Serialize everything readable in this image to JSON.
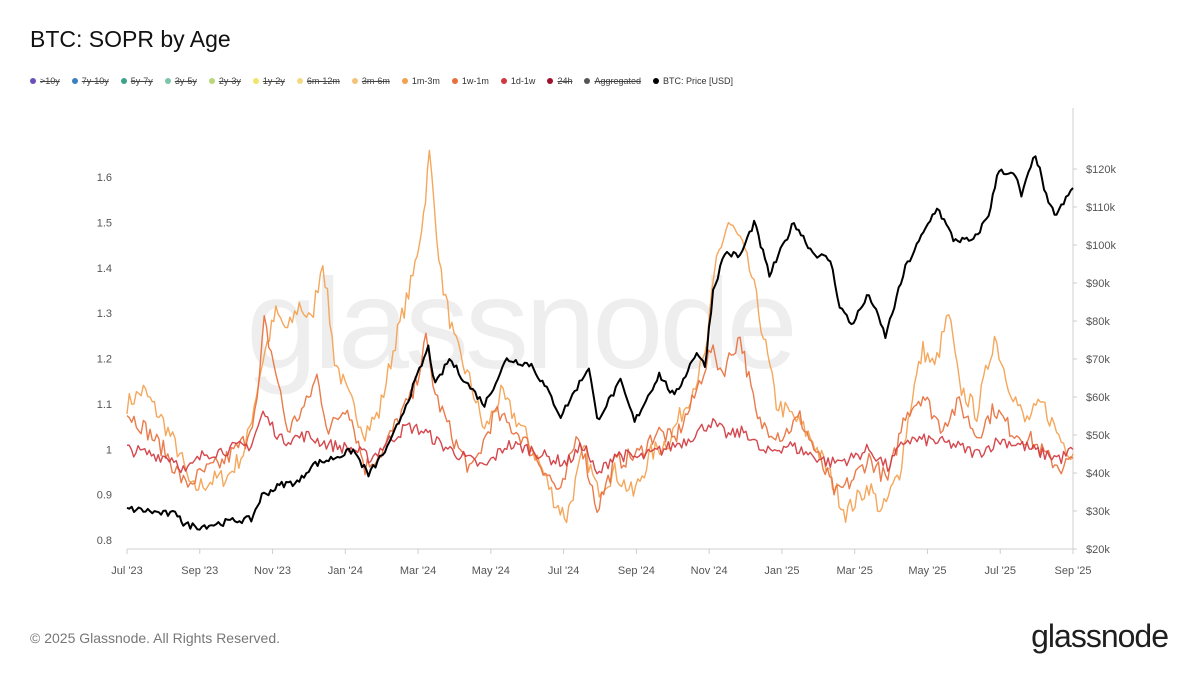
{
  "header": {
    "title": "BTC: SOPR by Age"
  },
  "legend": [
    {
      "label": ">10y",
      "color": "#6b4fbb",
      "off": true
    },
    {
      "label": "7y-10y",
      "color": "#3d7fc4",
      "off": true
    },
    {
      "label": "5y-7y",
      "color": "#3aa38a",
      "off": true
    },
    {
      "label": "3y-5y",
      "color": "#7cc5a8",
      "off": true
    },
    {
      "label": "2y-3y",
      "color": "#b9d77a",
      "off": true
    },
    {
      "label": "1y-2y",
      "color": "#f0e66a",
      "off": true
    },
    {
      "label": "6m-12m",
      "color": "#f6d884",
      "off": true
    },
    {
      "label": "3m-6m",
      "color": "#f5c27a",
      "off": true
    },
    {
      "label": "1m-3m",
      "color": "#f4a04e",
      "off": false
    },
    {
      "label": "1w-1m",
      "color": "#e8703c",
      "off": false
    },
    {
      "label": "1d-1w",
      "color": "#d0383f",
      "off": false
    },
    {
      "label": "24h",
      "color": "#a0102a",
      "off": true
    },
    {
      "label": "Aggregated",
      "color": "#555555",
      "off": true
    },
    {
      "label": "BTC: Price [USD]",
      "color": "#000000",
      "off": false
    }
  ],
  "watermark": "glassnode",
  "footer": {
    "copyright": "© 2025 Glassnode. All Rights Reserved.",
    "logo": "glassnode"
  },
  "chart_data": {
    "type": "line",
    "title": "BTC: SOPR by Age",
    "x_range": [
      "2023-07-01",
      "2025-09-15"
    ],
    "x_ticks": [
      "Jul '23",
      "Sep '23",
      "Nov '23",
      "Jan '24",
      "Mar '24",
      "May '24",
      "Jul '24",
      "Sep '24",
      "Nov '24",
      "Jan '25",
      "Mar '25",
      "May '25",
      "Jul '25",
      "Sep '25"
    ],
    "y_left": {
      "range": [
        0.78,
        1.66
      ],
      "ticks": [
        "0.8",
        "0.9",
        "1",
        "1.1",
        "1.2",
        "1.3",
        "1.4",
        "1.5",
        "1.6"
      ]
    },
    "y_right": {
      "range": [
        20000,
        125000
      ],
      "ticks": [
        "$20k",
        "$30k",
        "$40k",
        "$50k",
        "$60k",
        "$70k",
        "$80k",
        "$90k",
        "$100k",
        "$110k",
        "$120k"
      ]
    },
    "series": [
      {
        "name": "1m-3m",
        "color": "#f4a04e",
        "axis": "left",
        "points": [
          [
            "2023-07-01",
            1.1
          ],
          [
            "2023-07-15",
            1.13
          ],
          [
            "2023-08-01",
            1.06
          ],
          [
            "2023-08-15",
            0.99
          ],
          [
            "2023-08-25",
            0.91
          ],
          [
            "2023-09-10",
            0.93
          ],
          [
            "2023-09-25",
            0.94
          ],
          [
            "2023-10-10",
            1.0
          ],
          [
            "2023-10-25",
            1.2
          ],
          [
            "2023-11-05",
            1.3
          ],
          [
            "2023-11-15",
            1.26
          ],
          [
            "2023-11-25",
            1.32
          ],
          [
            "2023-12-05",
            1.28
          ],
          [
            "2023-12-15",
            1.42
          ],
          [
            "2023-12-25",
            1.2
          ],
          [
            "2024-01-05",
            1.12
          ],
          [
            "2024-01-20",
            1.04
          ],
          [
            "2024-02-01",
            1.08
          ],
          [
            "2024-02-15",
            1.24
          ],
          [
            "2024-03-01",
            1.38
          ],
          [
            "2024-03-10",
            1.52
          ],
          [
            "2024-03-15",
            1.65
          ],
          [
            "2024-03-25",
            1.38
          ],
          [
            "2024-04-05",
            1.24
          ],
          [
            "2024-04-20",
            1.14
          ],
          [
            "2024-05-01",
            1.04
          ],
          [
            "2024-05-15",
            1.12
          ],
          [
            "2024-06-01",
            1.05
          ],
          [
            "2024-06-15",
            0.98
          ],
          [
            "2024-07-01",
            0.88
          ],
          [
            "2024-07-10",
            0.85
          ],
          [
            "2024-07-25",
            1.0
          ],
          [
            "2024-08-05",
            0.91
          ],
          [
            "2024-08-20",
            0.95
          ],
          [
            "2024-09-05",
            0.9
          ],
          [
            "2024-09-20",
            0.99
          ],
          [
            "2024-10-05",
            1.02
          ],
          [
            "2024-10-20",
            1.1
          ],
          [
            "2024-11-05",
            1.2
          ],
          [
            "2024-11-15",
            1.42
          ],
          [
            "2024-11-25",
            1.5
          ],
          [
            "2024-12-05",
            1.46
          ],
          [
            "2024-12-15",
            1.38
          ],
          [
            "2024-12-25",
            1.25
          ],
          [
            "2025-01-05",
            1.1
          ],
          [
            "2025-01-20",
            1.07
          ],
          [
            "2025-02-05",
            1.02
          ],
          [
            "2025-02-20",
            0.94
          ],
          [
            "2025-03-05",
            0.86
          ],
          [
            "2025-03-15",
            0.89
          ],
          [
            "2025-03-25",
            0.92
          ],
          [
            "2025-04-05",
            0.86
          ],
          [
            "2025-04-20",
            0.95
          ],
          [
            "2025-05-01",
            1.12
          ],
          [
            "2025-05-10",
            1.22
          ],
          [
            "2025-05-20",
            1.18
          ],
          [
            "2025-06-01",
            1.3
          ],
          [
            "2025-06-10",
            1.14
          ],
          [
            "2025-06-25",
            1.08
          ],
          [
            "2025-07-10",
            1.25
          ],
          [
            "2025-07-20",
            1.16
          ],
          [
            "2025-08-05",
            1.06
          ],
          [
            "2025-08-20",
            1.1
          ],
          [
            "2025-09-05",
            1.02
          ],
          [
            "2025-09-15",
            0.99
          ]
        ]
      },
      {
        "name": "1w-1m",
        "color": "#e8703c",
        "axis": "left",
        "points": [
          [
            "2023-07-01",
            1.08
          ],
          [
            "2023-07-15",
            1.05
          ],
          [
            "2023-08-01",
            1.0
          ],
          [
            "2023-08-20",
            0.92
          ],
          [
            "2023-09-05",
            0.95
          ],
          [
            "2023-09-20",
            0.97
          ],
          [
            "2023-10-10",
            1.02
          ],
          [
            "2023-10-20",
            1.1
          ],
          [
            "2023-10-26",
            1.28
          ],
          [
            "2023-11-05",
            1.17
          ],
          [
            "2023-11-15",
            1.04
          ],
          [
            "2023-12-01",
            1.1
          ],
          [
            "2023-12-10",
            1.16
          ],
          [
            "2023-12-20",
            1.04
          ],
          [
            "2024-01-05",
            1.1
          ],
          [
            "2024-01-20",
            0.96
          ],
          [
            "2024-02-05",
            1.0
          ],
          [
            "2024-02-20",
            1.08
          ],
          [
            "2024-03-01",
            1.12
          ],
          [
            "2024-03-12",
            1.24
          ],
          [
            "2024-03-20",
            1.12
          ],
          [
            "2024-04-05",
            1.02
          ],
          [
            "2024-04-20",
            0.95
          ],
          [
            "2024-05-10",
            1.08
          ],
          [
            "2024-06-01",
            1.03
          ],
          [
            "2024-06-20",
            0.96
          ],
          [
            "2024-07-05",
            0.9
          ],
          [
            "2024-07-20",
            1.04
          ],
          [
            "2024-08-05",
            0.87
          ],
          [
            "2024-08-20",
            0.97
          ],
          [
            "2024-09-10",
            0.99
          ],
          [
            "2024-09-25",
            1.04
          ],
          [
            "2024-10-10",
            1.02
          ],
          [
            "2024-10-25",
            1.1
          ],
          [
            "2024-11-10",
            1.22
          ],
          [
            "2024-11-20",
            1.17
          ],
          [
            "2024-12-05",
            1.25
          ],
          [
            "2024-12-20",
            1.06
          ],
          [
            "2025-01-10",
            1.03
          ],
          [
            "2025-01-25",
            1.07
          ],
          [
            "2025-02-10",
            0.98
          ],
          [
            "2025-02-25",
            0.9
          ],
          [
            "2025-03-10",
            0.93
          ],
          [
            "2025-03-25",
            0.98
          ],
          [
            "2025-04-10",
            0.93
          ],
          [
            "2025-04-25",
            1.08
          ],
          [
            "2025-05-10",
            1.12
          ],
          [
            "2025-05-25",
            1.05
          ],
          [
            "2025-06-10",
            1.1
          ],
          [
            "2025-06-25",
            1.03
          ],
          [
            "2025-07-10",
            1.09
          ],
          [
            "2025-07-25",
            1.04
          ],
          [
            "2025-08-10",
            1.02
          ],
          [
            "2025-08-25",
            0.98
          ],
          [
            "2025-09-05",
            0.96
          ],
          [
            "2025-09-15",
            0.98
          ]
        ]
      },
      {
        "name": "1d-1w",
        "color": "#d0383f",
        "axis": "left",
        "points": [
          [
            "2023-07-01",
            1.0
          ],
          [
            "2023-07-20",
            0.99
          ],
          [
            "2023-08-10",
            0.98
          ],
          [
            "2023-08-20",
            0.95
          ],
          [
            "2023-09-05",
            0.99
          ],
          [
            "2023-09-25",
            1.0
          ],
          [
            "2023-10-15",
            1.01
          ],
          [
            "2023-10-25",
            1.08
          ],
          [
            "2023-11-10",
            1.02
          ],
          [
            "2023-12-01",
            1.03
          ],
          [
            "2023-12-20",
            1.01
          ],
          [
            "2024-01-10",
            1.0
          ],
          [
            "2024-01-25",
            0.98
          ],
          [
            "2024-02-10",
            1.02
          ],
          [
            "2024-02-25",
            1.05
          ],
          [
            "2024-03-10",
            1.04
          ],
          [
            "2024-03-25",
            1.01
          ],
          [
            "2024-04-15",
            0.98
          ],
          [
            "2024-05-01",
            0.96
          ],
          [
            "2024-05-20",
            1.01
          ],
          [
            "2024-06-10",
            1.0
          ],
          [
            "2024-06-25",
            0.98
          ],
          [
            "2024-07-10",
            0.97
          ],
          [
            "2024-07-25",
            1.01
          ],
          [
            "2024-08-05",
            0.94
          ],
          [
            "2024-08-20",
            0.99
          ],
          [
            "2024-09-10",
            0.98
          ],
          [
            "2024-10-01",
            1.0
          ],
          [
            "2024-10-20",
            1.02
          ],
          [
            "2024-11-10",
            1.06
          ],
          [
            "2024-11-25",
            1.03
          ],
          [
            "2024-12-10",
            1.04
          ],
          [
            "2024-12-25",
            0.99
          ],
          [
            "2025-01-15",
            1.01
          ],
          [
            "2025-02-01",
            0.99
          ],
          [
            "2025-02-20",
            0.97
          ],
          [
            "2025-03-10",
            0.98
          ],
          [
            "2025-03-25",
            1.0
          ],
          [
            "2025-04-10",
            0.96
          ],
          [
            "2025-04-25",
            1.02
          ],
          [
            "2025-05-15",
            1.02
          ],
          [
            "2025-06-05",
            1.01
          ],
          [
            "2025-06-25",
            0.99
          ],
          [
            "2025-07-15",
            1.02
          ],
          [
            "2025-08-01",
            1.01
          ],
          [
            "2025-08-20",
            0.99
          ],
          [
            "2025-09-05",
            0.98
          ],
          [
            "2025-09-15",
            1.0
          ]
        ]
      },
      {
        "name": "BTC: Price [USD]",
        "color": "#000000",
        "axis": "right",
        "points": [
          [
            "2023-07-01",
            30500
          ],
          [
            "2023-07-15",
            30200
          ],
          [
            "2023-08-01",
            29300
          ],
          [
            "2023-08-15",
            29100
          ],
          [
            "2023-08-18",
            26400
          ],
          [
            "2023-09-01",
            25900
          ],
          [
            "2023-09-15",
            26600
          ],
          [
            "2023-10-01",
            27500
          ],
          [
            "2023-10-15",
            27800
          ],
          [
            "2023-10-24",
            34000
          ],
          [
            "2023-11-10",
            37000
          ],
          [
            "2023-11-25",
            37700
          ],
          [
            "2023-12-05",
            42000
          ],
          [
            "2023-12-20",
            43500
          ],
          [
            "2024-01-10",
            46000
          ],
          [
            "2024-01-23",
            39500
          ],
          [
            "2024-02-10",
            47500
          ],
          [
            "2024-02-28",
            61000
          ],
          [
            "2024-03-14",
            73000
          ],
          [
            "2024-03-20",
            63000
          ],
          [
            "2024-04-01",
            70000
          ],
          [
            "2024-04-15",
            64000
          ],
          [
            "2024-05-01",
            58000
          ],
          [
            "2024-05-20",
            70000
          ],
          [
            "2024-06-10",
            68500
          ],
          [
            "2024-06-25",
            61000
          ],
          [
            "2024-07-05",
            55000
          ],
          [
            "2024-07-29",
            68000
          ],
          [
            "2024-08-05",
            54000
          ],
          [
            "2024-08-25",
            64000
          ],
          [
            "2024-09-06",
            53500
          ],
          [
            "2024-09-27",
            66000
          ],
          [
            "2024-10-10",
            60000
          ],
          [
            "2024-10-29",
            72000
          ],
          [
            "2024-11-05",
            68000
          ],
          [
            "2024-11-12",
            88000
          ],
          [
            "2024-11-22",
            98000
          ],
          [
            "2024-12-05",
            97000
          ],
          [
            "2024-12-17",
            106000
          ],
          [
            "2024-12-30",
            92000
          ],
          [
            "2025-01-20",
            106000
          ],
          [
            "2025-02-05",
            98000
          ],
          [
            "2025-02-20",
            96000
          ],
          [
            "2025-02-28",
            84000
          ],
          [
            "2025-03-10",
            79000
          ],
          [
            "2025-03-25",
            87000
          ],
          [
            "2025-04-08",
            76000
          ],
          [
            "2025-04-25",
            94000
          ],
          [
            "2025-05-22",
            110000
          ],
          [
            "2025-06-05",
            101500
          ],
          [
            "2025-06-22",
            101000
          ],
          [
            "2025-07-05",
            108000
          ],
          [
            "2025-07-14",
            120000
          ],
          [
            "2025-07-28",
            118000
          ],
          [
            "2025-08-02",
            113000
          ],
          [
            "2025-08-14",
            124000
          ],
          [
            "2025-08-25",
            110500
          ],
          [
            "2025-09-01",
            108000
          ],
          [
            "2025-09-15",
            115000
          ]
        ]
      }
    ]
  }
}
